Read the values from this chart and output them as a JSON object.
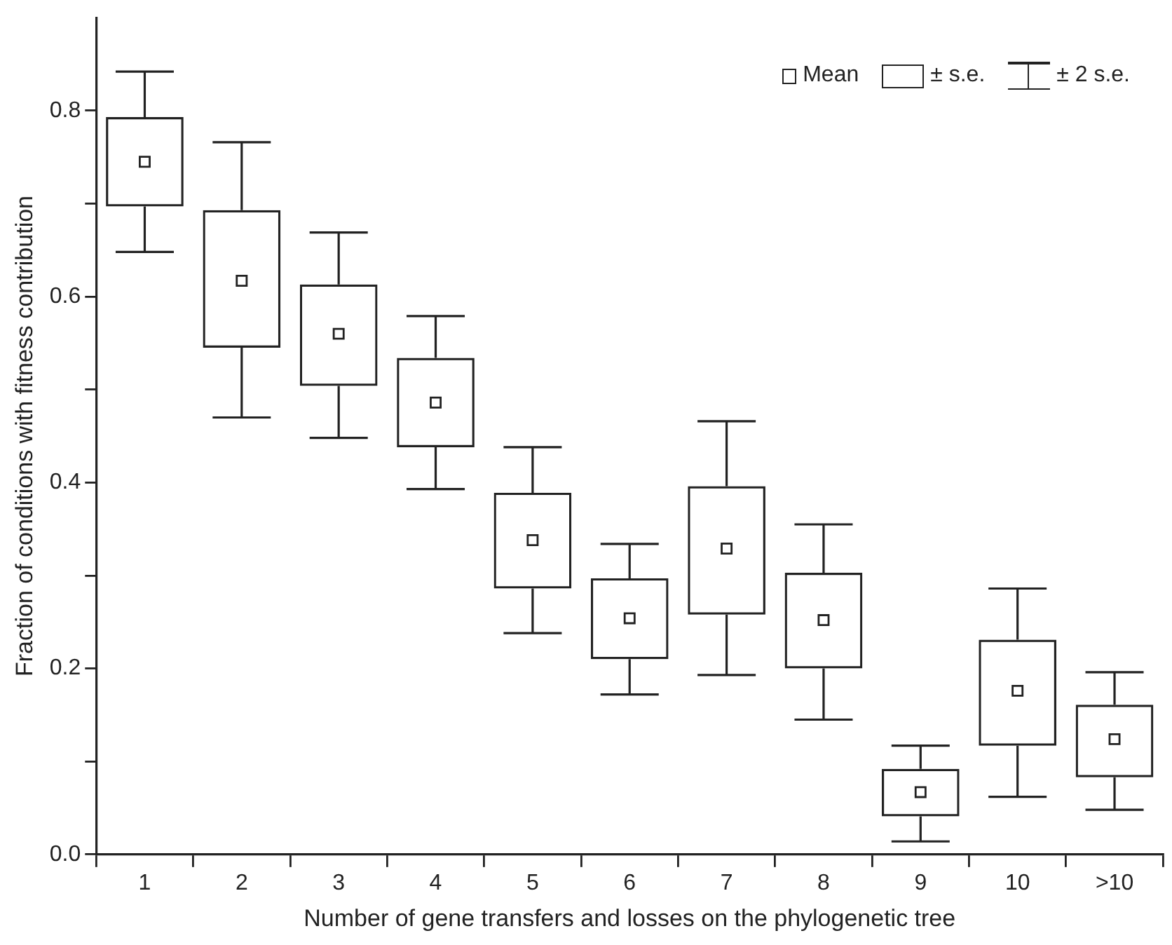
{
  "chart_data": {
    "type": "box",
    "xlabel": "Number of gene transfers and losses on the phylogenetic tree",
    "ylabel": "Fraction of conditions with fitness contribution",
    "categories": [
      "1",
      "2",
      "3",
      "4",
      "5",
      "6",
      "7",
      "8",
      "9",
      "10",
      ">10"
    ],
    "boxes": [
      {
        "low": 0.648,
        "q1": 0.697,
        "q3": 0.793,
        "high": 0.842,
        "mean": 0.745
      },
      {
        "low": 0.47,
        "q1": 0.545,
        "q3": 0.693,
        "high": 0.766,
        "mean": 0.617
      },
      {
        "low": 0.448,
        "q1": 0.504,
        "q3": 0.613,
        "high": 0.669,
        "mean": 0.56
      },
      {
        "low": 0.393,
        "q1": 0.438,
        "q3": 0.534,
        "high": 0.579,
        "mean": 0.486
      },
      {
        "low": 0.238,
        "q1": 0.286,
        "q3": 0.389,
        "high": 0.438,
        "mean": 0.338
      },
      {
        "low": 0.172,
        "q1": 0.21,
        "q3": 0.297,
        "high": 0.334,
        "mean": 0.254
      },
      {
        "low": 0.193,
        "q1": 0.258,
        "q3": 0.396,
        "high": 0.466,
        "mean": 0.329
      },
      {
        "low": 0.145,
        "q1": 0.2,
        "q3": 0.303,
        "high": 0.355,
        "mean": 0.252
      },
      {
        "low": 0.014,
        "q1": 0.041,
        "q3": 0.092,
        "high": 0.117,
        "mean": 0.067
      },
      {
        "low": 0.062,
        "q1": 0.117,
        "q3": 0.231,
        "high": 0.286,
        "mean": 0.176
      },
      {
        "low": 0.048,
        "q1": 0.083,
        "q3": 0.161,
        "high": 0.196,
        "mean": 0.124
      }
    ],
    "color": "#222222",
    "ylim": [
      0,
      0.9
    ],
    "yticks": [
      {
        "value": 0,
        "label": "0.0"
      },
      {
        "value": 0.1,
        "label": null
      },
      0.2,
      {
        "value": 0.3,
        "label": null
      },
      0.4,
      {
        "value": 0.5,
        "label": null
      },
      0.6,
      {
        "value": 0.7,
        "label": null
      },
      0.8
    ],
    "grid": false,
    "marker": "square",
    "annotations": [
      "Mean",
      "± s.e.",
      "± 2 s.e."
    ]
  }
}
